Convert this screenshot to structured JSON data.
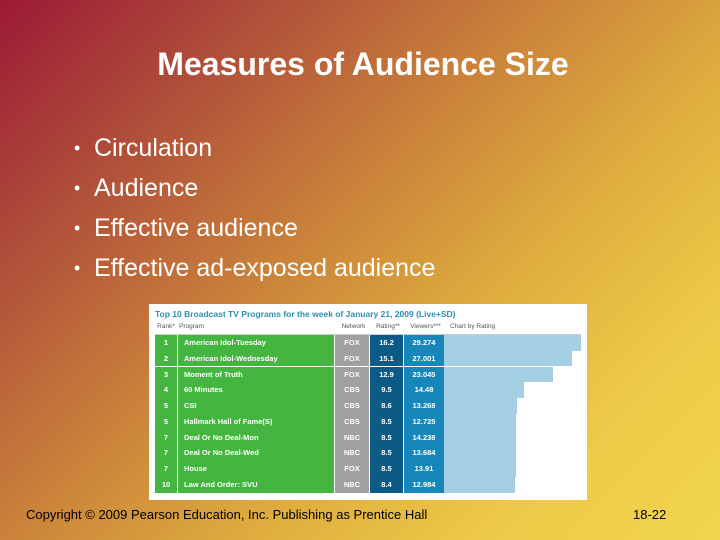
{
  "title": "Measures of Audience Size",
  "bullets": [
    "Circulation",
    "Audience",
    "Effective audience",
    "Effective ad-exposed audience"
  ],
  "table": {
    "caption": "Top 10 Broadcast TV Programs for the week of January 21, 2009 (Live+SD)",
    "headers": {
      "rank": "Rank*",
      "program": "Program",
      "network": "Network",
      "rating": "Rating**",
      "viewers": "Viewers***",
      "chart": "Chart by Rating"
    },
    "rows": [
      {
        "rank": "1",
        "program": "American Idol-Tuesday",
        "network": "FOX",
        "rating": "16.2",
        "viewers": "29.274",
        "value": 16.2
      },
      {
        "rank": "2",
        "program": "American Idol-Wednesday",
        "network": "FOX",
        "rating": "15.1",
        "viewers": "27.001",
        "value": 15.1
      },
      {
        "rank": "3",
        "program": "Moment of Truth",
        "network": "FOX",
        "rating": "12.9",
        "viewers": "23.045",
        "value": 12.9
      },
      {
        "rank": "4",
        "program": "60 Minutes",
        "network": "CBS",
        "rating": "9.5",
        "viewers": "14.48",
        "value": 9.5
      },
      {
        "rank": "5",
        "program": "CSI",
        "network": "CBS",
        "rating": "8.6",
        "viewers": "13.268",
        "value": 8.6
      },
      {
        "rank": "5",
        "program": "Hallmark Hall of Fame(S)",
        "network": "CBS",
        "rating": "8.5",
        "viewers": "12.725",
        "value": 8.5
      },
      {
        "rank": "7",
        "program": "Deal Or No Deal-Mon",
        "network": "NBC",
        "rating": "8.5",
        "viewers": "14.238",
        "value": 8.5
      },
      {
        "rank": "7",
        "program": "Deal Or No Deal-Wed",
        "network": "NBC",
        "rating": "8.5",
        "viewers": "13.684",
        "value": 8.5
      },
      {
        "rank": "7",
        "program": "House",
        "network": "FOX",
        "rating": "8.5",
        "viewers": "13.91",
        "value": 8.5
      },
      {
        "rank": "10",
        "program": "Law And Order: SVU",
        "network": "NBC",
        "rating": "8.4",
        "viewers": "12.984",
        "value": 8.4
      }
    ]
  },
  "footer": "Copyright © 2009 Pearson Education, Inc.  Publishing as Prentice Hall",
  "page_number": "18-22"
}
